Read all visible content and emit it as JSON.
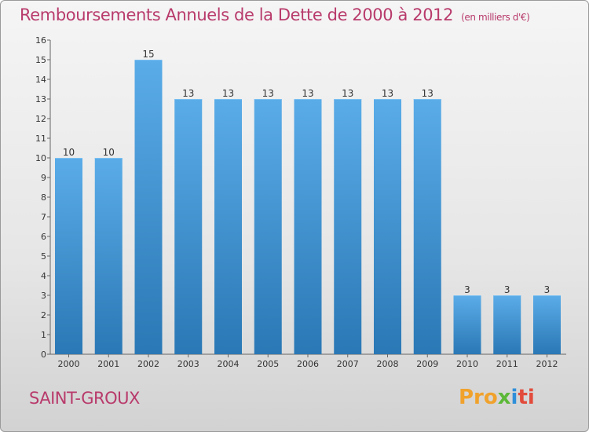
{
  "header": {
    "title": "Remboursements Annuels de la Dette de 2000 à 2012",
    "unit": "(en milliers d'€)"
  },
  "footer": {
    "commune": "SAINT-GROUX",
    "logo_parts": [
      "Pro",
      "x",
      "i",
      "ti"
    ]
  },
  "colors": {
    "title": "#b83a6b",
    "bar_top": "#5aace8",
    "bar_bottom": "#2a78b5"
  },
  "chart_data": {
    "type": "bar",
    "title": "Remboursements Annuels de la Dette de 2000 à 2012",
    "categories": [
      "2000",
      "2001",
      "2002",
      "2003",
      "2004",
      "2005",
      "2006",
      "2007",
      "2008",
      "2009",
      "2010",
      "2011",
      "2012"
    ],
    "values": [
      10,
      10,
      15,
      13,
      13,
      13,
      13,
      13,
      13,
      13,
      3,
      3,
      3
    ],
    "ylim": [
      0,
      16
    ],
    "yticks": [
      0,
      1,
      2,
      3,
      4,
      5,
      6,
      7,
      8,
      9,
      10,
      11,
      12,
      13,
      14,
      15,
      16
    ],
    "grid": false,
    "legend": "none"
  }
}
